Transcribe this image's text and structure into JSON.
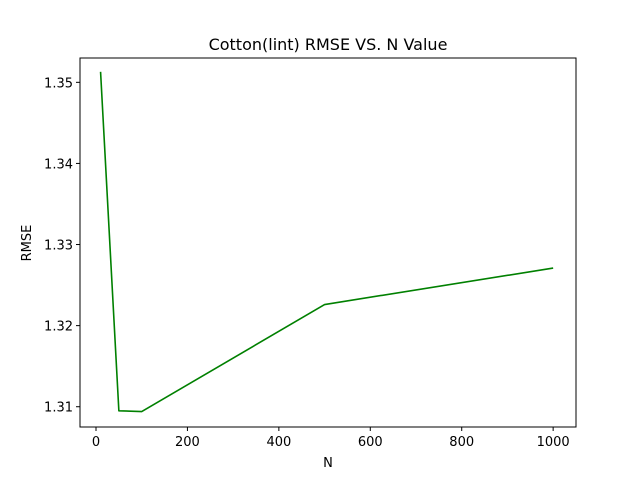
{
  "chart_data": {
    "type": "line",
    "title": "Cotton(lint) RMSE VS. N Value",
    "xlabel": "N",
    "ylabel": "RMSE",
    "xlim": [
      -35,
      1050
    ],
    "ylim": [
      1.3075,
      1.353
    ],
    "xticks": [
      0,
      200,
      400,
      600,
      800,
      1000
    ],
    "yticks": [
      1.31,
      1.32,
      1.33,
      1.34,
      1.35
    ],
    "xtick_labels": [
      "0",
      "200",
      "400",
      "600",
      "800",
      "1000"
    ],
    "ytick_labels": [
      "1.31",
      "1.32",
      "1.33",
      "1.34",
      "1.35"
    ],
    "grid": false,
    "series": [
      {
        "color": "#008000",
        "x": [
          10,
          50,
          100,
          500,
          1000
        ],
        "y": [
          1.3513,
          1.3095,
          1.3094,
          1.3226,
          1.3271
        ]
      }
    ]
  }
}
